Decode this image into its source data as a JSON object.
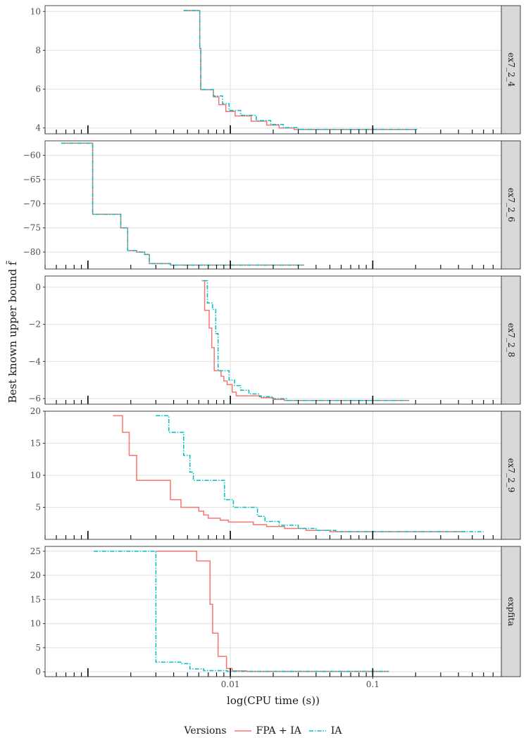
{
  "chart_data": {
    "type": "line",
    "ylabel": "Best known upper bound f̃",
    "xlabel": "log(CPU time (s))",
    "x_scale": "log10",
    "xlim": [
      0.0005,
      0.8
    ],
    "x_ticks": [
      0.01,
      0.1
    ],
    "x_tick_labels": [
      "0.01",
      "0.1"
    ],
    "grid": true,
    "legend": {
      "title": "Versions",
      "position": "bottom",
      "entries": [
        "FPA + IA",
        "IA"
      ]
    },
    "series_colors": {
      "FPA + IA": "#F8766D",
      "IA": "#00BFC4"
    },
    "panels": [
      {
        "strip": "ex7_2_4",
        "ylim": [
          3.7,
          10.3
        ],
        "y_ticks": [
          4,
          6,
          8,
          10
        ],
        "y_tick_labels": [
          "4",
          "6",
          "8",
          "10"
        ],
        "series": [
          {
            "name": "FPA + IA",
            "x": [
              0.0047,
              0.0061,
              0.0061,
              0.0062,
              0.0062,
              0.0076,
              0.0076,
              0.0083,
              0.0083,
              0.0093,
              0.0093,
              0.0108,
              0.0108,
              0.014,
              0.014,
              0.018,
              0.018,
              0.022,
              0.022,
              0.028,
              0.028,
              0.2
            ],
            "y": [
              10.05,
              10.05,
              8.1,
              8.1,
              5.97,
              5.97,
              5.6,
              5.6,
              5.2,
              5.2,
              4.85,
              4.85,
              4.62,
              4.62,
              4.35,
              4.35,
              4.15,
              4.15,
              4.0,
              4.0,
              3.92,
              3.92
            ]
          },
          {
            "name": "IA",
            "x": [
              0.0047,
              0.0061,
              0.0061,
              0.0062,
              0.0062,
              0.0076,
              0.0076,
              0.0088,
              0.0088,
              0.0098,
              0.0098,
              0.0118,
              0.0118,
              0.0152,
              0.0152,
              0.0192,
              0.0192,
              0.0235,
              0.0235,
              0.03,
              0.03,
              0.21
            ],
            "y": [
              10.05,
              10.05,
              8.1,
              8.1,
              5.97,
              5.97,
              5.65,
              5.65,
              5.25,
              5.25,
              4.9,
              4.9,
              4.65,
              4.65,
              4.38,
              4.38,
              4.18,
              4.18,
              4.02,
              4.02,
              3.93,
              3.93
            ]
          }
        ]
      },
      {
        "strip": "ex7_2_6",
        "ylim": [
          -83.5,
          -57
        ],
        "y_ticks": [
          -60,
          -65,
          -70,
          -75,
          -80
        ],
        "y_tick_labels": [
          "−60",
          "−65",
          "−70",
          "−75",
          "−80"
        ],
        "series": [
          {
            "name": "FPA + IA",
            "x": [
              0.00065,
              0.00108,
              0.00108,
              0.0017,
              0.0017,
              0.0019,
              0.0019,
              0.0022,
              0.0022,
              0.0025,
              0.0025,
              0.0027,
              0.0027,
              0.0038,
              0.0038,
              0.033
            ],
            "y": [
              -57.5,
              -57.5,
              -72.2,
              -72.2,
              -75.0,
              -75.0,
              -79.7,
              -79.7,
              -80.0,
              -80.0,
              -80.5,
              -80.5,
              -82.4,
              -82.4,
              -82.7,
              -82.7
            ]
          },
          {
            "name": "IA",
            "x": [
              0.00065,
              0.00108,
              0.00108,
              0.0017,
              0.0017,
              0.0019,
              0.0019,
              0.0022,
              0.0022,
              0.0025,
              0.0025,
              0.0027,
              0.0027,
              0.0038,
              0.0038,
              0.033
            ],
            "y": [
              -57.5,
              -57.5,
              -72.2,
              -72.2,
              -75.0,
              -75.0,
              -79.7,
              -79.7,
              -80.0,
              -80.0,
              -80.5,
              -80.5,
              -82.4,
              -82.4,
              -82.7,
              -82.7
            ]
          }
        ]
      },
      {
        "strip": "ex7_2_8",
        "ylim": [
          -6.3,
          0.6
        ],
        "y_ticks": [
          0,
          -2,
          -4,
          -6
        ],
        "y_tick_labels": [
          "0",
          "−2",
          "−4",
          "−6"
        ],
        "series": [
          {
            "name": "FPA + IA",
            "x": [
              0.0063,
              0.0066,
              0.0066,
              0.0071,
              0.0071,
              0.0074,
              0.0074,
              0.0077,
              0.0077,
              0.0086,
              0.0086,
              0.009,
              0.009,
              0.0095,
              0.0095,
              0.0103,
              0.0103,
              0.011,
              0.011,
              0.0165,
              0.0165,
              0.02,
              0.02,
              0.024,
              0.024,
              0.18
            ],
            "y": [
              0.35,
              0.35,
              -1.25,
              -1.25,
              -2.2,
              -2.2,
              -3.25,
              -3.25,
              -4.5,
              -4.5,
              -4.8,
              -4.8,
              -5.05,
              -5.05,
              -5.25,
              -5.25,
              -5.65,
              -5.65,
              -5.85,
              -5.85,
              -5.95,
              -5.95,
              -6.05,
              -6.05,
              -6.1,
              -6.1
            ]
          },
          {
            "name": "IA",
            "x": [
              0.0065,
              0.0069,
              0.0069,
              0.0075,
              0.0075,
              0.0079,
              0.0079,
              0.0082,
              0.0082,
              0.0098,
              0.0098,
              0.0107,
              0.0107,
              0.0118,
              0.0118,
              0.0135,
              0.0135,
              0.016,
              0.016,
              0.0195,
              0.0195,
              0.025,
              0.025,
              0.18
            ],
            "y": [
              0.35,
              0.35,
              -0.85,
              -0.85,
              -1.2,
              -1.2,
              -2.5,
              -2.5,
              -4.5,
              -4.5,
              -5.0,
              -5.0,
              -5.3,
              -5.3,
              -5.55,
              -5.55,
              -5.75,
              -5.75,
              -5.9,
              -5.9,
              -6.0,
              -6.0,
              -6.1,
              -6.1
            ]
          }
        ]
      },
      {
        "strip": "ex7_2_9",
        "ylim": [
          0,
          20
        ],
        "y_ticks": [
          5,
          10,
          15,
          20
        ],
        "y_tick_labels": [
          "5",
          "10",
          "15",
          "20"
        ],
        "series": [
          {
            "name": "FPA + IA",
            "x": [
              0.0015,
              0.00175,
              0.00175,
              0.00195,
              0.00195,
              0.0022,
              0.0022,
              0.0038,
              0.0038,
              0.0045,
              0.0045,
              0.006,
              0.006,
              0.0065,
              0.0065,
              0.007,
              0.007,
              0.0085,
              0.0085,
              0.0097,
              0.0097,
              0.0145,
              0.0145,
              0.018,
              0.018,
              0.024,
              0.024,
              0.034,
              0.034,
              0.05,
              0.05,
              0.45
            ],
            "y": [
              19.3,
              19.3,
              16.7,
              16.7,
              13.1,
              13.1,
              9.2,
              9.2,
              6.2,
              6.2,
              5.0,
              5.0,
              4.4,
              4.4,
              3.8,
              3.8,
              3.3,
              3.3,
              3.0,
              3.0,
              2.7,
              2.7,
              2.3,
              2.3,
              2.0,
              2.0,
              1.7,
              1.7,
              1.4,
              1.4,
              1.2,
              1.2
            ]
          },
          {
            "name": "IA",
            "x": [
              0.003,
              0.0037,
              0.0037,
              0.0047,
              0.0047,
              0.0052,
              0.0052,
              0.0055,
              0.0055,
              0.0091,
              0.0091,
              0.0105,
              0.0105,
              0.0155,
              0.0155,
              0.0175,
              0.0175,
              0.022,
              0.022,
              0.03,
              0.03,
              0.04,
              0.04,
              0.055,
              0.055,
              0.6
            ],
            "y": [
              19.3,
              19.3,
              16.7,
              16.7,
              13.1,
              13.1,
              10.5,
              10.5,
              9.2,
              9.2,
              6.2,
              6.2,
              5.0,
              5.0,
              3.6,
              3.6,
              2.8,
              2.8,
              2.2,
              2.2,
              1.7,
              1.7,
              1.4,
              1.4,
              1.2,
              1.2
            ]
          }
        ]
      },
      {
        "strip": "expfita",
        "ylim": [
          -1,
          26
        ],
        "y_ticks": [
          0,
          5,
          10,
          15,
          20,
          25
        ],
        "y_tick_labels": [
          "0",
          "5",
          "10",
          "15",
          "20",
          "25"
        ],
        "series": [
          {
            "name": "FPA + IA",
            "x": [
              0.003,
              0.0058,
              0.0058,
              0.0072,
              0.0072,
              0.0075,
              0.0075,
              0.0082,
              0.0082,
              0.0094,
              0.0094,
              0.0103,
              0.0103,
              0.013,
              0.013,
              0.13
            ],
            "y": [
              25.0,
              25.0,
              23.0,
              23.0,
              14.0,
              14.0,
              8.0,
              8.0,
              3.2,
              3.2,
              0.7,
              0.7,
              0.2,
              0.2,
              0.1,
              0.1
            ]
          },
          {
            "name": "IA",
            "x": [
              0.0011,
              0.003,
              0.003,
              0.0045,
              0.0045,
              0.0052,
              0.0052,
              0.0065,
              0.0065,
              0.0095,
              0.0095,
              0.13
            ],
            "y": [
              25.0,
              25.0,
              2.0,
              2.0,
              1.7,
              1.7,
              0.6,
              0.6,
              0.25,
              0.25,
              0.1,
              0.1
            ]
          }
        ]
      }
    ]
  }
}
